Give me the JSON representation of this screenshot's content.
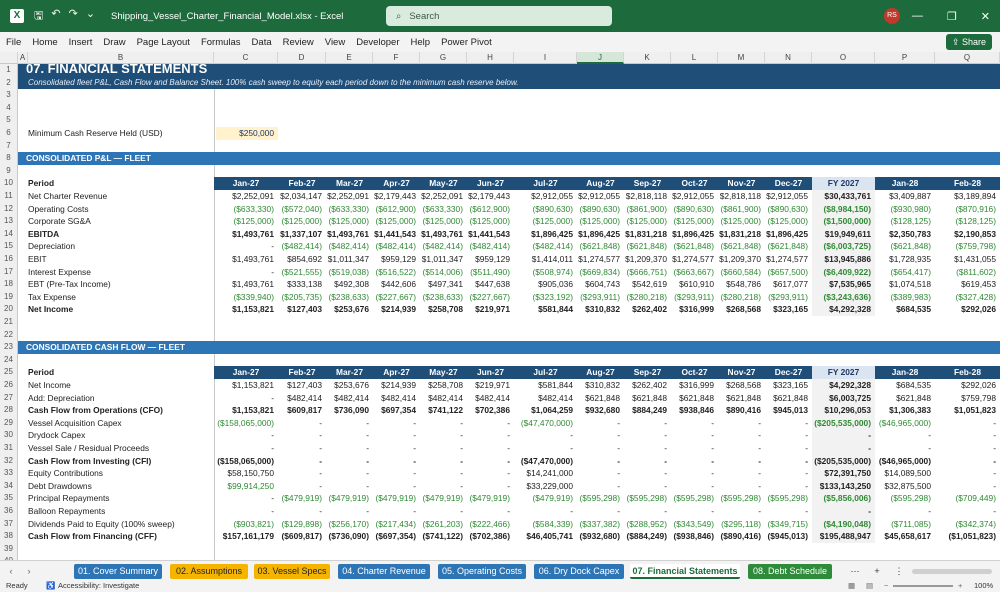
{
  "window": {
    "filename": "Shipping_Vessel_Charter_Financial_Model.xlsx",
    "app": "Excel",
    "search_placeholder": "Search",
    "user_initials": "RS",
    "share_label": "Share"
  },
  "menu": [
    "File",
    "Home",
    "Insert",
    "Draw",
    "Page Layout",
    "Formulas",
    "Data",
    "Review",
    "View",
    "Developer",
    "Help",
    "Power Pivot"
  ],
  "columns": [
    "A",
    "B",
    "C",
    "D",
    "E",
    "F",
    "G",
    "H",
    "I",
    "J",
    "K",
    "L",
    "M",
    "N",
    "O",
    "P",
    "Q"
  ],
  "active_column": "J",
  "sheet": {
    "title": "07.  FINANCIAL STATEMENTS",
    "subtitle": "Consolidated fleet P&L, Cash Flow and Balance Sheet. 100% cash sweep to equity each period down to the minimum cash reserve below.",
    "min_cash_label": "Minimum Cash Reserve Held (USD)",
    "min_cash_value": "$250,000",
    "pl_section": "CONSOLIDATED P&L — FLEET",
    "cf_section": "CONSOLIDATED CASH FLOW — FLEET",
    "period_label": "Period",
    "periods": [
      "Jan-27",
      "Feb-27",
      "Mar-27",
      "Apr-27",
      "May-27",
      "Jun-27",
      "Jul-27",
      "Aug-27",
      "Sep-27",
      "Oct-27",
      "Nov-27",
      "Dec-27",
      "FY 2027",
      "Jan-28",
      "Feb-28"
    ],
    "pl_rows": [
      {
        "n": "11",
        "label": "Net Charter Revenue",
        "bold": false,
        "v": [
          "$2,252,091",
          "$2,034,147",
          "$2,252,091",
          "$2,179,443",
          "$2,252,091",
          "$2,179,443",
          "$2,912,055",
          "$2,912,055",
          "$2,818,118",
          "$2,912,055",
          "$2,818,118",
          "$2,912,055",
          "$30,433,761",
          "$3,409,887",
          "$3,189,894"
        ]
      },
      {
        "n": "12",
        "label": "Operating Costs",
        "bold": false,
        "v": [
          "($633,330)",
          "($572,040)",
          "($633,330)",
          "($612,900)",
          "($633,330)",
          "($612,900)",
          "($890,630)",
          "($890,630)",
          "($861,900)",
          "($890,630)",
          "($861,900)",
          "($890,630)",
          "($8,984,150)",
          "($930,980)",
          "($870,916)"
        ]
      },
      {
        "n": "13",
        "label": "Corporate SG&A",
        "bold": false,
        "v": [
          "($125,000)",
          "($125,000)",
          "($125,000)",
          "($125,000)",
          "($125,000)",
          "($125,000)",
          "($125,000)",
          "($125,000)",
          "($125,000)",
          "($125,000)",
          "($125,000)",
          "($125,000)",
          "($1,500,000)",
          "($128,125)",
          "($128,125)"
        ]
      },
      {
        "n": "14",
        "label": "EBITDA",
        "bold": true,
        "v": [
          "$1,493,761",
          "$1,337,107",
          "$1,493,761",
          "$1,441,543",
          "$1,493,761",
          "$1,441,543",
          "$1,896,425",
          "$1,896,425",
          "$1,831,218",
          "$1,896,425",
          "$1,831,218",
          "$1,896,425",
          "$19,949,611",
          "$2,350,783",
          "$2,190,853"
        ]
      },
      {
        "n": "15",
        "label": "Depreciation",
        "bold": false,
        "v": [
          "-",
          "($482,414)",
          "($482,414)",
          "($482,414)",
          "($482,414)",
          "($482,414)",
          "($482,414)",
          "($621,848)",
          "($621,848)",
          "($621,848)",
          "($621,848)",
          "($621,848)",
          "($6,003,725)",
          "($621,848)",
          "($759,798)"
        ]
      },
      {
        "n": "16",
        "label": "EBIT",
        "bold": false,
        "v": [
          "$1,493,761",
          "$854,692",
          "$1,011,347",
          "$959,129",
          "$1,011,347",
          "$959,129",
          "$1,414,011",
          "$1,274,577",
          "$1,209,370",
          "$1,274,577",
          "$1,209,370",
          "$1,274,577",
          "$13,945,886",
          "$1,728,935",
          "$1,431,055"
        ]
      },
      {
        "n": "17",
        "label": "Interest Expense",
        "bold": false,
        "v": [
          "-",
          "($521,555)",
          "($519,038)",
          "($516,522)",
          "($514,006)",
          "($511,490)",
          "($508,974)",
          "($669,834)",
          "($666,751)",
          "($663,667)",
          "($660,584)",
          "($657,500)",
          "($6,409,922)",
          "($654,417)",
          "($811,602)"
        ]
      },
      {
        "n": "18",
        "label": "EBT (Pre-Tax Income)",
        "bold": false,
        "v": [
          "$1,493,761",
          "$333,138",
          "$492,308",
          "$442,606",
          "$497,341",
          "$447,638",
          "$905,036",
          "$604,743",
          "$542,619",
          "$610,910",
          "$548,786",
          "$617,077",
          "$7,535,965",
          "$1,074,518",
          "$619,453"
        ]
      },
      {
        "n": "19",
        "label": "Tax Expense",
        "bold": false,
        "v": [
          "($339,940)",
          "($205,735)",
          "($238,633)",
          "($227,667)",
          "($238,633)",
          "($227,667)",
          "($323,192)",
          "($293,911)",
          "($280,218)",
          "($293,911)",
          "($280,218)",
          "($293,911)",
          "($3,243,636)",
          "($389,983)",
          "($327,428)"
        ]
      },
      {
        "n": "20",
        "label": "Net Income",
        "bold": true,
        "v": [
          "$1,153,821",
          "$127,403",
          "$253,676",
          "$214,939",
          "$258,708",
          "$219,971",
          "$581,844",
          "$310,832",
          "$262,402",
          "$316,999",
          "$268,568",
          "$323,165",
          "$4,292,328",
          "$684,535",
          "$292,026"
        ]
      }
    ],
    "cf_rows": [
      {
        "n": "26",
        "label": "Net Income",
        "bold": false,
        "v": [
          "$1,153,821",
          "$127,403",
          "$253,676",
          "$214,939",
          "$258,708",
          "$219,971",
          "$581,844",
          "$310,832",
          "$262,402",
          "$316,999",
          "$268,568",
          "$323,165",
          "$4,292,328",
          "$684,535",
          "$292,026"
        ]
      },
      {
        "n": "27",
        "label": "Add: Depreciation",
        "bold": false,
        "v": [
          "-",
          "$482,414",
          "$482,414",
          "$482,414",
          "$482,414",
          "$482,414",
          "$482,414",
          "$621,848",
          "$621,848",
          "$621,848",
          "$621,848",
          "$621,848",
          "$6,003,725",
          "$621,848",
          "$759,798"
        ]
      },
      {
        "n": "28",
        "label": "Cash Flow from Operations (CFO)",
        "bold": true,
        "v": [
          "$1,153,821",
          "$609,817",
          "$736,090",
          "$697,354",
          "$741,122",
          "$702,386",
          "$1,064,259",
          "$932,680",
          "$884,249",
          "$938,846",
          "$890,416",
          "$945,013",
          "$10,296,053",
          "$1,306,383",
          "$1,051,823"
        ]
      },
      {
        "n": "29",
        "label": "Vessel Acquisition Capex",
        "bold": false,
        "v": [
          "($158,065,000)",
          "-",
          "-",
          "-",
          "-",
          "-",
          "($47,470,000)",
          "-",
          "-",
          "-",
          "-",
          "-",
          "($205,535,000)",
          "($46,965,000)",
          "-"
        ]
      },
      {
        "n": "30",
        "label": "Drydock Capex",
        "bold": false,
        "v": [
          "-",
          "-",
          "-",
          "-",
          "-",
          "-",
          "-",
          "-",
          "-",
          "-",
          "-",
          "-",
          "-",
          "-",
          "-"
        ]
      },
      {
        "n": "31",
        "label": "Vessel Sale / Residual Proceeds",
        "bold": false,
        "v": [
          "-",
          "-",
          "-",
          "-",
          "-",
          "-",
          "-",
          "-",
          "-",
          "-",
          "-",
          "-",
          "-",
          "-",
          "-"
        ]
      },
      {
        "n": "32",
        "label": "Cash Flow from Investing (CFI)",
        "bold": true,
        "v": [
          "($158,065,000)",
          "-",
          "-",
          "-",
          "-",
          "-",
          "($47,470,000)",
          "-",
          "-",
          "-",
          "-",
          "-",
          "($205,535,000)",
          "($46,965,000)",
          "-"
        ]
      },
      {
        "n": "33",
        "label": "Equity Contributions",
        "bold": false,
        "v": [
          "$58,150,750",
          "-",
          "-",
          "-",
          "-",
          "-",
          "$14,241,000",
          "-",
          "-",
          "-",
          "-",
          "-",
          "$72,391,750",
          "$14,089,500",
          "-"
        ]
      },
      {
        "n": "34",
        "label": "Debt Drawdowns",
        "bold": false,
        "v": [
          "$99,914,250",
          "-",
          "-",
          "-",
          "-",
          "-",
          "$33,229,000",
          "-",
          "-",
          "-",
          "-",
          "-",
          "$133,143,250",
          "$32,875,500",
          "-"
        ]
      },
      {
        "n": "35",
        "label": "Principal Repayments",
        "bold": false,
        "v": [
          "-",
          "($479,919)",
          "($479,919)",
          "($479,919)",
          "($479,919)",
          "($479,919)",
          "($479,919)",
          "($595,298)",
          "($595,298)",
          "($595,298)",
          "($595,298)",
          "($595,298)",
          "($5,856,006)",
          "($595,298)",
          "($709,449)"
        ]
      },
      {
        "n": "36",
        "label": "Balloon Repayments",
        "bold": false,
        "v": [
          "-",
          "-",
          "-",
          "-",
          "-",
          "-",
          "-",
          "-",
          "-",
          "-",
          "-",
          "-",
          "-",
          "-",
          "-"
        ]
      },
      {
        "n": "37",
        "label": "Dividends Paid to Equity (100% sweep)",
        "bold": false,
        "v": [
          "($903,821)",
          "($129,898)",
          "($256,170)",
          "($217,434)",
          "($261,203)",
          "($222,466)",
          "($584,339)",
          "($337,382)",
          "($288,952)",
          "($343,549)",
          "($295,118)",
          "($349,715)",
          "($4,190,048)",
          "($711,085)",
          "($342,374)"
        ]
      },
      {
        "n": "38",
        "label": "Cash Flow from Financing (CFF)",
        "bold": true,
        "v": [
          "$157,161,179",
          "($609,817)",
          "($736,090)",
          "($697,354)",
          "($741,122)",
          "($702,386)",
          "$46,405,741",
          "($932,680)",
          "($884,249)",
          "($938,846)",
          "($890,416)",
          "($945,013)",
          "$195,488,947",
          "$45,658,617",
          "($1,051,823)"
        ]
      }
    ]
  },
  "tabs": [
    {
      "label": "01. Cover Summary",
      "color": "#2e75b6"
    },
    {
      "label": "02. Assumptions",
      "color": "#f4b400"
    },
    {
      "label": "03. Vessel Specs",
      "color": "#f4b400"
    },
    {
      "label": "04. Charter Revenue",
      "color": "#2e75b6"
    },
    {
      "label": "05. Operating Costs",
      "color": "#2e75b6"
    },
    {
      "label": "06. Dry Dock Capex",
      "color": "#2e75b6"
    },
    {
      "label": "07. Financial Statements",
      "color": "#ffffff"
    },
    {
      "label": "08. Debt Schedule",
      "color": "#2e8b3a"
    }
  ],
  "status": {
    "ready": "Ready",
    "accessibility": "Accessibility: Investigate",
    "zoom": "100%"
  }
}
